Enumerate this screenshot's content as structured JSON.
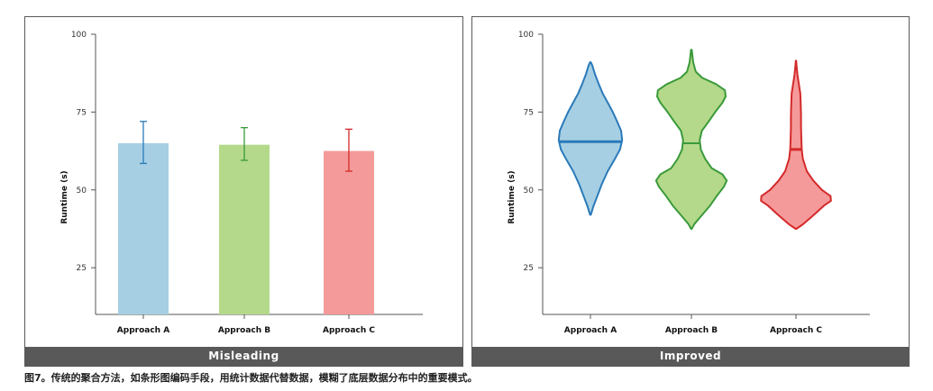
{
  "caption": "图7。传统的聚合方法，如条形图编码手段，用统计数据代替数据，模糊了底层数据分布中的重要模式。",
  "chart_data": [
    {
      "type": "bar",
      "title": "Misleading",
      "ylabel": "Runtime (s)",
      "ylim": [
        10,
        100
      ],
      "yticks": [
        25,
        50,
        75,
        100
      ],
      "categories": [
        "Approach A",
        "Approach B",
        "Approach C"
      ],
      "values": [
        65,
        64.5,
        62.5
      ],
      "error_low": [
        58.5,
        59.5,
        56
      ],
      "error_high": [
        72,
        70,
        69.5
      ],
      "colors": [
        "#a6cfe3",
        "#b4d98a",
        "#f59a9a"
      ],
      "error_colors": [
        "#2a7ab9",
        "#3a9a3a",
        "#d42a2a"
      ],
      "grid": false
    },
    {
      "type": "violin",
      "title": "Improved",
      "ylabel": "Runtime (s)",
      "ylim": [
        10,
        100
      ],
      "yticks": [
        25,
        50,
        75,
        100
      ],
      "categories": [
        "Approach A",
        "Approach B",
        "Approach C"
      ],
      "medians": [
        65.5,
        65,
        63
      ],
      "fills": [
        "#a6cfe3",
        "#b4d98a",
        "#f59a9a"
      ],
      "strokes": [
        "#2a7ab9",
        "#3a9a3a",
        "#d42a2a"
      ],
      "densities": [
        [
          [
            42,
            0.01
          ],
          [
            45,
            0.09
          ],
          [
            48,
            0.19
          ],
          [
            52,
            0.32
          ],
          [
            56,
            0.48
          ],
          [
            60,
            0.68
          ],
          [
            63,
            0.82
          ],
          [
            66,
            0.88
          ],
          [
            69,
            0.85
          ],
          [
            72,
            0.74
          ],
          [
            75,
            0.62
          ],
          [
            78,
            0.48
          ],
          [
            81,
            0.34
          ],
          [
            84,
            0.23
          ],
          [
            87,
            0.13
          ],
          [
            90,
            0.05
          ],
          [
            91,
            0.01
          ]
        ],
        [
          [
            37.5,
            0.01
          ],
          [
            39,
            0.08
          ],
          [
            42,
            0.3
          ],
          [
            45,
            0.52
          ],
          [
            48,
            0.7
          ],
          [
            51,
            0.9
          ],
          [
            53,
            0.98
          ],
          [
            55,
            0.86
          ],
          [
            57,
            0.56
          ],
          [
            60,
            0.38
          ],
          [
            63,
            0.26
          ],
          [
            66,
            0.23
          ],
          [
            69,
            0.29
          ],
          [
            72,
            0.48
          ],
          [
            75,
            0.66
          ],
          [
            78,
            0.86
          ],
          [
            80,
            0.95
          ],
          [
            82,
            0.93
          ],
          [
            84,
            0.68
          ],
          [
            86,
            0.3
          ],
          [
            88,
            0.12
          ],
          [
            91,
            0.05
          ],
          [
            95,
            0.01
          ]
        ],
        [
          [
            37.5,
            0.01
          ],
          [
            39,
            0.2
          ],
          [
            42,
            0.5
          ],
          [
            45,
            0.78
          ],
          [
            46.5,
            0.97
          ],
          [
            48,
            0.96
          ],
          [
            50,
            0.72
          ],
          [
            53,
            0.48
          ],
          [
            56,
            0.3
          ],
          [
            60,
            0.19
          ],
          [
            63,
            0.16
          ],
          [
            66,
            0.15
          ],
          [
            70,
            0.14
          ],
          [
            74,
            0.14
          ],
          [
            78,
            0.13
          ],
          [
            81,
            0.12
          ],
          [
            84,
            0.08
          ],
          [
            87,
            0.04
          ],
          [
            90,
            0.015
          ],
          [
            91.5,
            0.005
          ]
        ]
      ],
      "grid": false
    }
  ]
}
